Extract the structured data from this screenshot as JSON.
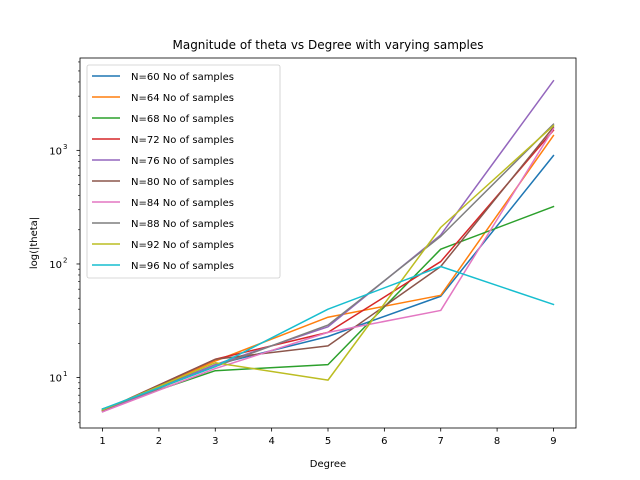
{
  "chart_data": {
    "type": "line",
    "title": "Magnitude of theta vs Degree with varying samples",
    "xlabel": "Degree",
    "ylabel": "log(|theta|",
    "x": [
      1,
      3,
      5,
      7,
      9
    ],
    "xticks": [
      "1",
      "2",
      "3",
      "4",
      "5",
      "6",
      "7",
      "8",
      "9"
    ],
    "xlim": [
      0.6,
      9.4
    ],
    "yscale": "log",
    "ylim": [
      3.6,
      6500
    ],
    "yticks": [
      {
        "value": 10,
        "base": "10",
        "exp": "1"
      },
      {
        "value": 100,
        "base": "10",
        "exp": "2"
      },
      {
        "value": 1000,
        "base": "10",
        "exp": "3"
      }
    ],
    "grid": false,
    "legend_position": "upper-left",
    "series": [
      {
        "name": "N=60 No of samples",
        "color": "#1f77b4",
        "values": [
          5.2,
          13.0,
          23.0,
          52.0,
          900.0
        ]
      },
      {
        "name": "N=64 No of samples",
        "color": "#ff7f0e",
        "values": [
          5.1,
          14.0,
          34.0,
          53.0,
          1350.0
        ]
      },
      {
        "name": "N=68 No of samples",
        "color": "#2ca02c",
        "values": [
          5.3,
          11.5,
          13.0,
          135.0,
          320.0
        ]
      },
      {
        "name": "N=72 No of samples",
        "color": "#d62728",
        "values": [
          5.1,
          14.5,
          25.0,
          105.0,
          1500.0
        ]
      },
      {
        "name": "N=76 No of samples",
        "color": "#9467bd",
        "values": [
          5.0,
          13.0,
          28.0,
          180.0,
          4100.0
        ]
      },
      {
        "name": "N=80 No of samples",
        "color": "#8c564b",
        "values": [
          5.1,
          14.5,
          19.0,
          95.0,
          1600.0
        ]
      },
      {
        "name": "N=84 No of samples",
        "color": "#e377c2",
        "values": [
          5.0,
          12.0,
          25.0,
          39.0,
          1550.0
        ]
      },
      {
        "name": "N=88 No of samples",
        "color": "#7f7f7f",
        "values": [
          5.2,
          12.5,
          29.0,
          175.0,
          1700.0
        ]
      },
      {
        "name": "N=92 No of samples",
        "color": "#bcbd22",
        "values": [
          5.2,
          13.5,
          9.5,
          210.0,
          1650.0
        ]
      },
      {
        "name": "N=96 No of samples",
        "color": "#17becf",
        "values": [
          5.3,
          12.5,
          40.0,
          95.0,
          44.0
        ]
      }
    ]
  }
}
